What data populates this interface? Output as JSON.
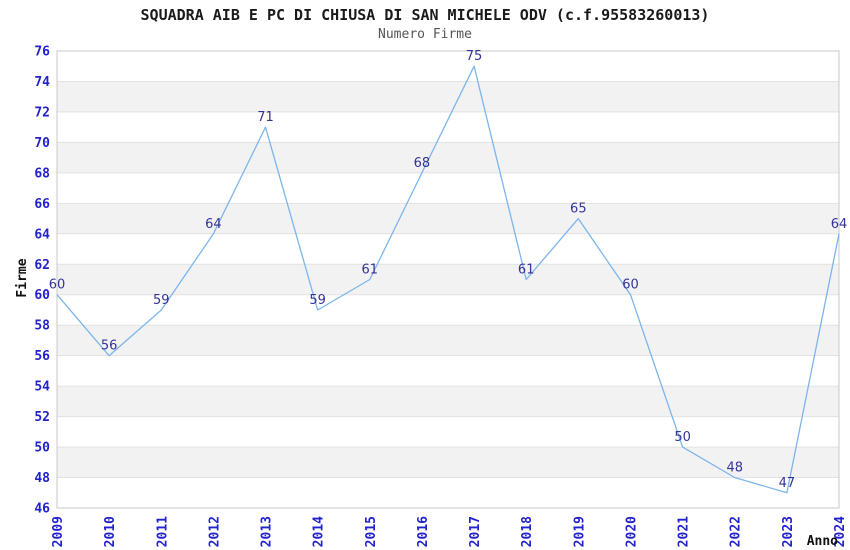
{
  "chart_data": {
    "type": "line",
    "title": "SQUADRA AIB E PC DI CHIUSA DI SAN MICHELE ODV (c.f.95583260013)",
    "subtitle": "Numero Firme",
    "xlabel": "Anno",
    "ylabel": "Firme",
    "categories": [
      "2009",
      "2010",
      "2011",
      "2012",
      "2013",
      "2014",
      "2015",
      "2016",
      "2017",
      "2018",
      "2019",
      "2020",
      "2021",
      "2022",
      "2023",
      "2024"
    ],
    "series": [
      {
        "name": "Numero Firme",
        "values": [
          60,
          56,
          59,
          64,
          71,
          59,
          61,
          68,
          75,
          61,
          65,
          60,
          50,
          48,
          47,
          64
        ]
      }
    ],
    "ylim": [
      46,
      76
    ],
    "ytick_step": 2,
    "grid": "horizontal-bands-alternating",
    "legend_position": "none",
    "data_labels_visible": true,
    "colors": {
      "line": "#7cb5ec",
      "data_label": "#333399",
      "tick_label": "#2222cc",
      "band": "#f2f2f2",
      "gridline": "#e2e2e2",
      "plot_border": "#c8c8c8",
      "title": "#1a1a1a",
      "subtitle": "#555555",
      "axis_title": "#111111",
      "background": "#ffffff"
    }
  }
}
